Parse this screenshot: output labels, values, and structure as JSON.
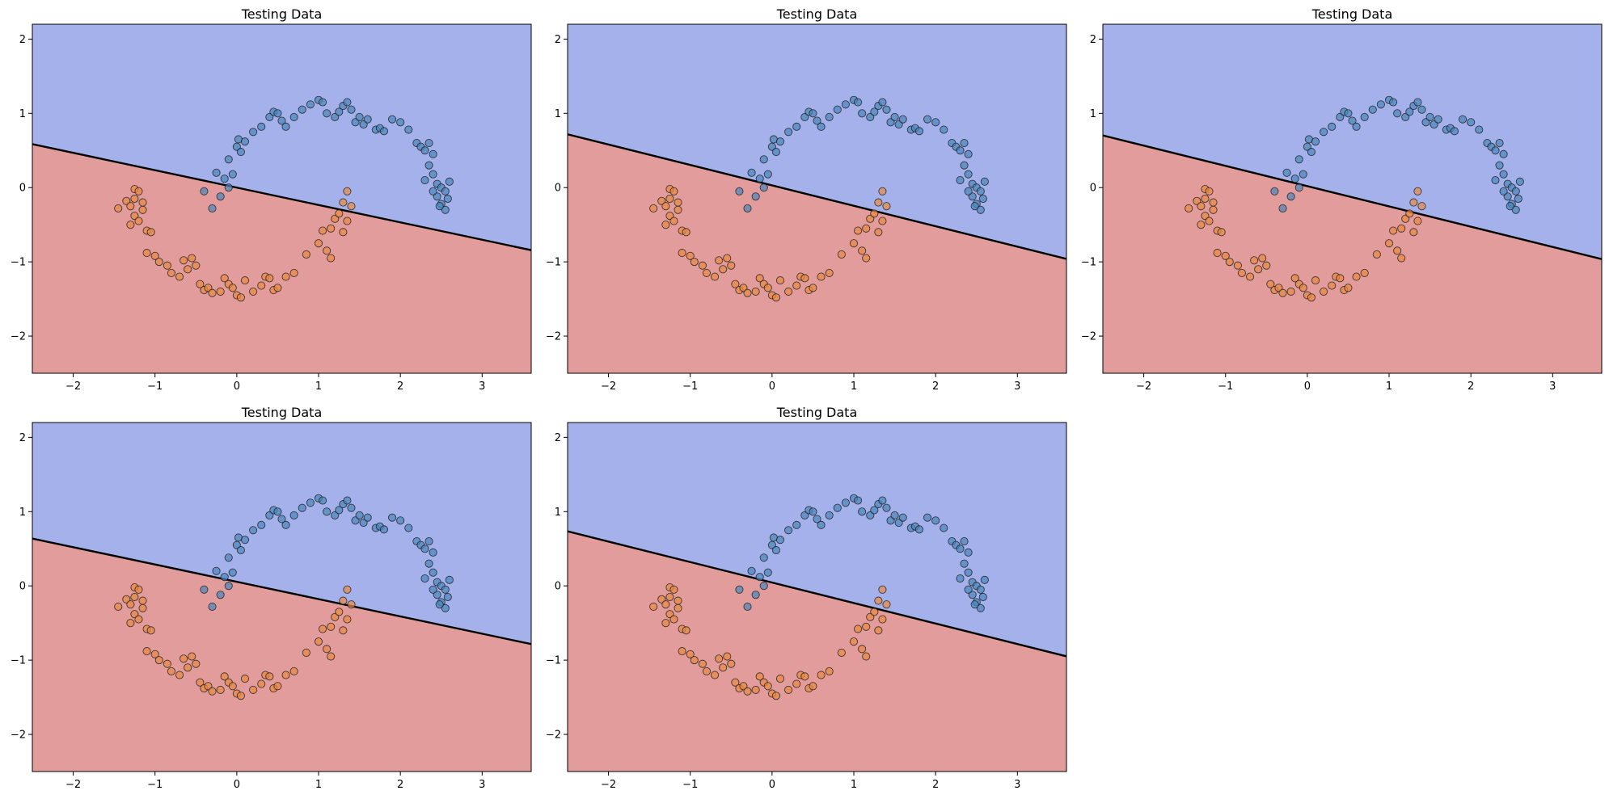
{
  "colors": {
    "region_class0": "#a5b1ea",
    "region_class1": "#e39c9c",
    "point_class0": "#4a86ba",
    "point_class1": "#e88a42",
    "boundary": "#000000",
    "axes_edge": "#000000"
  },
  "chart_data": [
    {
      "type": "scatter",
      "title": "Testing Data",
      "xlabel": "",
      "ylabel": "",
      "xlim": [
        -2.5,
        3.6
      ],
      "ylim": [
        -2.5,
        2.2
      ],
      "xticks": [
        "−2",
        "−1",
        "0",
        "1",
        "2",
        "3"
      ],
      "yticks": [
        "−2",
        "−1",
        "0",
        "1",
        "2"
      ],
      "grid": false,
      "decision_boundary": {
        "slope": -0.234,
        "intercept": 0.0
      }
    },
    {
      "type": "scatter",
      "title": "Testing Data",
      "xlabel": "",
      "ylabel": "",
      "xlim": [
        -2.5,
        3.6
      ],
      "ylim": [
        -2.5,
        2.2
      ],
      "xticks": [
        "−2",
        "−1",
        "0",
        "1",
        "2",
        "3"
      ],
      "yticks": [
        "−2",
        "−1",
        "0",
        "1",
        "2"
      ],
      "grid": false,
      "decision_boundary": {
        "slope": -0.275,
        "intercept": 0.03
      }
    },
    {
      "type": "scatter",
      "title": "Testing Data",
      "xlabel": "",
      "ylabel": "",
      "xlim": [
        -2.5,
        3.6
      ],
      "ylim": [
        -2.5,
        2.2
      ],
      "xticks": [
        "−2",
        "−1",
        "0",
        "1",
        "2",
        "3"
      ],
      "yticks": [
        "−2",
        "−1",
        "0",
        "1",
        "2"
      ],
      "grid": false,
      "decision_boundary": {
        "slope": -0.273,
        "intercept": 0.02
      }
    },
    {
      "type": "scatter",
      "title": "Testing Data",
      "xlabel": "",
      "ylabel": "",
      "xlim": [
        -2.5,
        3.6
      ],
      "ylim": [
        -2.5,
        2.2
      ],
      "xticks": [
        "−2",
        "−1",
        "0",
        "1",
        "2",
        "3"
      ],
      "yticks": [
        "−2",
        "−1",
        "0",
        "1",
        "2"
      ],
      "grid": false,
      "decision_boundary": {
        "slope": -0.233,
        "intercept": 0.055
      }
    },
    {
      "type": "scatter",
      "title": "Testing Data",
      "xlabel": "",
      "ylabel": "",
      "xlim": [
        -2.5,
        3.6
      ],
      "ylim": [
        -2.5,
        2.2
      ],
      "xticks": [
        "−2",
        "−1",
        "0",
        "1",
        "2",
        "3"
      ],
      "yticks": [
        "−2",
        "−1",
        "0",
        "1",
        "2"
      ],
      "grid": false,
      "decision_boundary": {
        "slope": -0.276,
        "intercept": 0.045
      }
    }
  ],
  "points": {
    "class0": [
      [
        -0.4,
        -0.05
      ],
      [
        -0.3,
        -0.28
      ],
      [
        -0.25,
        0.2
      ],
      [
        -0.2,
        -0.12
      ],
      [
        -0.15,
        0.12
      ],
      [
        -0.1,
        0.0
      ],
      [
        -0.05,
        0.18
      ],
      [
        -0.1,
        0.38
      ],
      [
        0.0,
        0.55
      ],
      [
        0.02,
        0.65
      ],
      [
        0.05,
        0.48
      ],
      [
        0.1,
        0.62
      ],
      [
        0.2,
        0.75
      ],
      [
        0.3,
        0.82
      ],
      [
        0.4,
        0.95
      ],
      [
        0.45,
        1.02
      ],
      [
        0.5,
        1.0
      ],
      [
        0.55,
        0.9
      ],
      [
        0.6,
        0.82
      ],
      [
        0.7,
        0.95
      ],
      [
        0.8,
        1.05
      ],
      [
        0.9,
        1.12
      ],
      [
        1.0,
        1.18
      ],
      [
        1.05,
        1.15
      ],
      [
        1.1,
        1.0
      ],
      [
        1.2,
        0.95
      ],
      [
        1.25,
        1.02
      ],
      [
        1.3,
        1.1
      ],
      [
        1.35,
        1.15
      ],
      [
        1.4,
        1.05
      ],
      [
        1.45,
        0.88
      ],
      [
        1.5,
        0.95
      ],
      [
        1.55,
        0.85
      ],
      [
        1.6,
        0.92
      ],
      [
        1.7,
        0.78
      ],
      [
        1.75,
        0.8
      ],
      [
        1.8,
        0.76
      ],
      [
        1.9,
        0.92
      ],
      [
        2.0,
        0.88
      ],
      [
        2.1,
        0.78
      ],
      [
        2.2,
        0.6
      ],
      [
        2.25,
        0.55
      ],
      [
        2.3,
        0.5
      ],
      [
        2.35,
        0.6
      ],
      [
        2.4,
        0.45
      ],
      [
        2.35,
        0.3
      ],
      [
        2.4,
        0.18
      ],
      [
        2.45,
        0.05
      ],
      [
        2.5,
        0.0
      ],
      [
        2.55,
        -0.05
      ],
      [
        2.45,
        -0.12
      ],
      [
        2.5,
        -0.22
      ],
      [
        2.55,
        -0.3
      ],
      [
        2.6,
        0.08
      ],
      [
        2.58,
        -0.15
      ],
      [
        2.4,
        -0.05
      ],
      [
        2.3,
        0.1
      ],
      [
        2.48,
        -0.25
      ]
    ],
    "class1": [
      [
        -1.45,
        -0.28
      ],
      [
        -1.35,
        -0.18
      ],
      [
        -1.3,
        -0.25
      ],
      [
        -1.25,
        -0.38
      ],
      [
        -1.3,
        -0.5
      ],
      [
        -1.2,
        -0.45
      ],
      [
        -1.15,
        -0.3
      ],
      [
        -1.25,
        -0.02
      ],
      [
        -1.2,
        -0.05
      ],
      [
        -1.15,
        -0.2
      ],
      [
        -1.1,
        -0.58
      ],
      [
        -1.05,
        -0.6
      ],
      [
        -1.1,
        -0.88
      ],
      [
        -1.0,
        -0.92
      ],
      [
        -0.95,
        -1.0
      ],
      [
        -0.85,
        -1.05
      ],
      [
        -0.8,
        -1.15
      ],
      [
        -0.7,
        -1.2
      ],
      [
        -0.65,
        -0.98
      ],
      [
        -0.6,
        -1.1
      ],
      [
        -0.55,
        -0.95
      ],
      [
        -0.5,
        -1.05
      ],
      [
        -0.45,
        -1.3
      ],
      [
        -0.4,
        -1.38
      ],
      [
        -0.35,
        -1.35
      ],
      [
        -0.3,
        -1.42
      ],
      [
        -0.2,
        -1.4
      ],
      [
        -0.15,
        -1.22
      ],
      [
        -0.1,
        -1.3
      ],
      [
        -0.05,
        -1.35
      ],
      [
        0.0,
        -1.45
      ],
      [
        0.05,
        -1.48
      ],
      [
        0.1,
        -1.25
      ],
      [
        0.2,
        -1.4
      ],
      [
        0.3,
        -1.32
      ],
      [
        0.35,
        -1.2
      ],
      [
        0.4,
        -1.22
      ],
      [
        0.45,
        -1.38
      ],
      [
        0.5,
        -1.35
      ],
      [
        0.6,
        -1.2
      ],
      [
        0.7,
        -1.15
      ],
      [
        0.85,
        -0.9
      ],
      [
        1.0,
        -0.75
      ],
      [
        1.1,
        -0.85
      ],
      [
        1.15,
        -0.55
      ],
      [
        1.2,
        -0.42
      ],
      [
        1.25,
        -0.35
      ],
      [
        1.3,
        -0.6
      ],
      [
        1.35,
        -0.45
      ],
      [
        1.3,
        -0.2
      ],
      [
        1.35,
        -0.05
      ],
      [
        1.4,
        -0.25
      ],
      [
        1.15,
        -0.95
      ],
      [
        1.05,
        -0.58
      ],
      [
        -1.25,
        -0.15
      ]
    ]
  }
}
